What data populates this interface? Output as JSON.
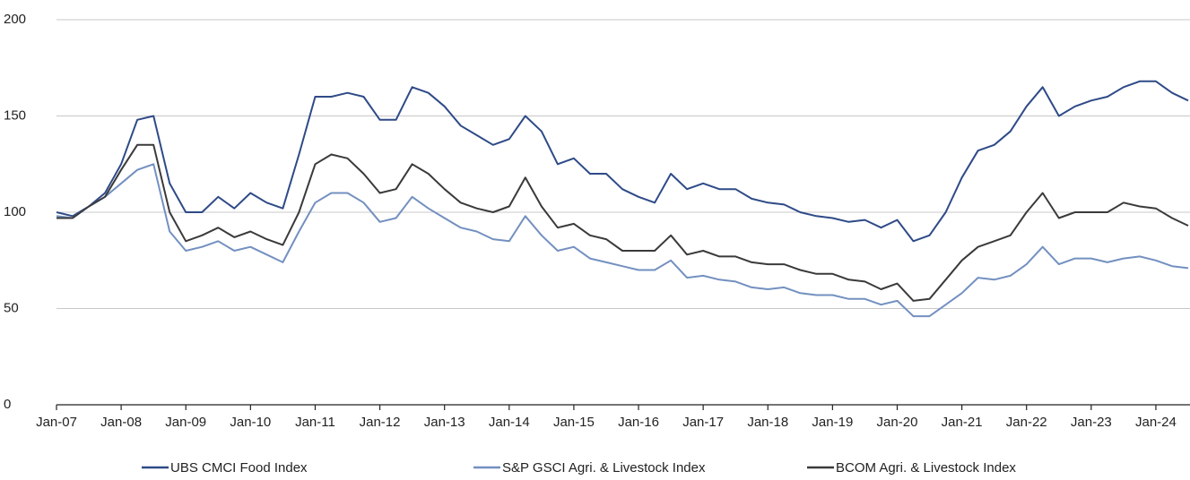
{
  "chart_data": {
    "type": "line",
    "categories": [
      "Jan-07",
      null,
      null,
      null,
      "Jan-08",
      null,
      null,
      null,
      "Jan-09",
      null,
      null,
      null,
      "Jan-10",
      null,
      null,
      null,
      "Jan-11",
      null,
      null,
      null,
      "Jan-12",
      null,
      null,
      null,
      "Jan-13",
      null,
      null,
      null,
      "Jan-14",
      null,
      null,
      null,
      "Jan-15",
      null,
      null,
      null,
      "Jan-16",
      null,
      null,
      null,
      "Jan-17",
      null,
      null,
      null,
      "Jan-18",
      null,
      null,
      null,
      "Jan-19",
      null,
      null,
      null,
      "Jan-20",
      null,
      null,
      null,
      "Jan-21",
      null,
      null,
      null,
      "Jan-22",
      null,
      null,
      null,
      "Jan-23",
      null,
      null,
      null,
      "Jan-24",
      null,
      null
    ],
    "series": [
      {
        "name": "UBS CMCI Food Index",
        "color": "#2e4a87",
        "values": [
          100,
          98,
          103,
          110,
          125,
          148,
          150,
          115,
          100,
          100,
          108,
          102,
          110,
          105,
          102,
          130,
          160,
          160,
          162,
          160,
          148,
          148,
          165,
          162,
          155,
          145,
          140,
          135,
          138,
          150,
          142,
          125,
          128,
          120,
          120,
          112,
          108,
          105,
          120,
          112,
          115,
          112,
          112,
          107,
          105,
          104,
          100,
          98,
          97,
          95,
          96,
          92,
          96,
          85,
          88,
          100,
          118,
          132,
          135,
          142,
          155,
          165,
          150,
          155,
          158,
          160,
          165,
          168,
          168,
          162,
          158
        ]
      },
      {
        "name": "S&P GSCI Agri. & Livestock Index",
        "color": "#7390c0",
        "values": [
          98,
          97,
          103,
          108,
          115,
          122,
          125,
          90,
          80,
          82,
          85,
          80,
          82,
          78,
          74,
          90,
          105,
          110,
          110,
          105,
          95,
          97,
          108,
          102,
          97,
          92,
          90,
          86,
          85,
          98,
          88,
          80,
          82,
          76,
          74,
          72,
          70,
          70,
          75,
          66,
          67,
          65,
          64,
          61,
          60,
          61,
          58,
          57,
          57,
          55,
          55,
          52,
          54,
          46,
          46,
          52,
          58,
          66,
          65,
          67,
          73,
          82,
          73,
          76,
          76,
          74,
          76,
          77,
          75,
          72,
          71
        ]
      },
      {
        "name": "BCOM Agri. & Livestock Index",
        "color": "#3a3a3c",
        "values": [
          97,
          97,
          103,
          108,
          122,
          135,
          135,
          100,
          85,
          88,
          92,
          87,
          90,
          86,
          83,
          100,
          125,
          130,
          128,
          120,
          110,
          112,
          125,
          120,
          112,
          105,
          102,
          100,
          103,
          118,
          103,
          92,
          94,
          88,
          86,
          80,
          80,
          80,
          88,
          78,
          80,
          77,
          77,
          74,
          73,
          73,
          70,
          68,
          68,
          65,
          64,
          60,
          63,
          54,
          55,
          65,
          75,
          82,
          85,
          88,
          100,
          110,
          97,
          100,
          100,
          100,
          105,
          103,
          102,
          97,
          93
        ]
      }
    ],
    "ylim": [
      0,
      200
    ],
    "yticks": [
      0,
      50,
      100,
      150,
      200
    ],
    "grid": true
  }
}
